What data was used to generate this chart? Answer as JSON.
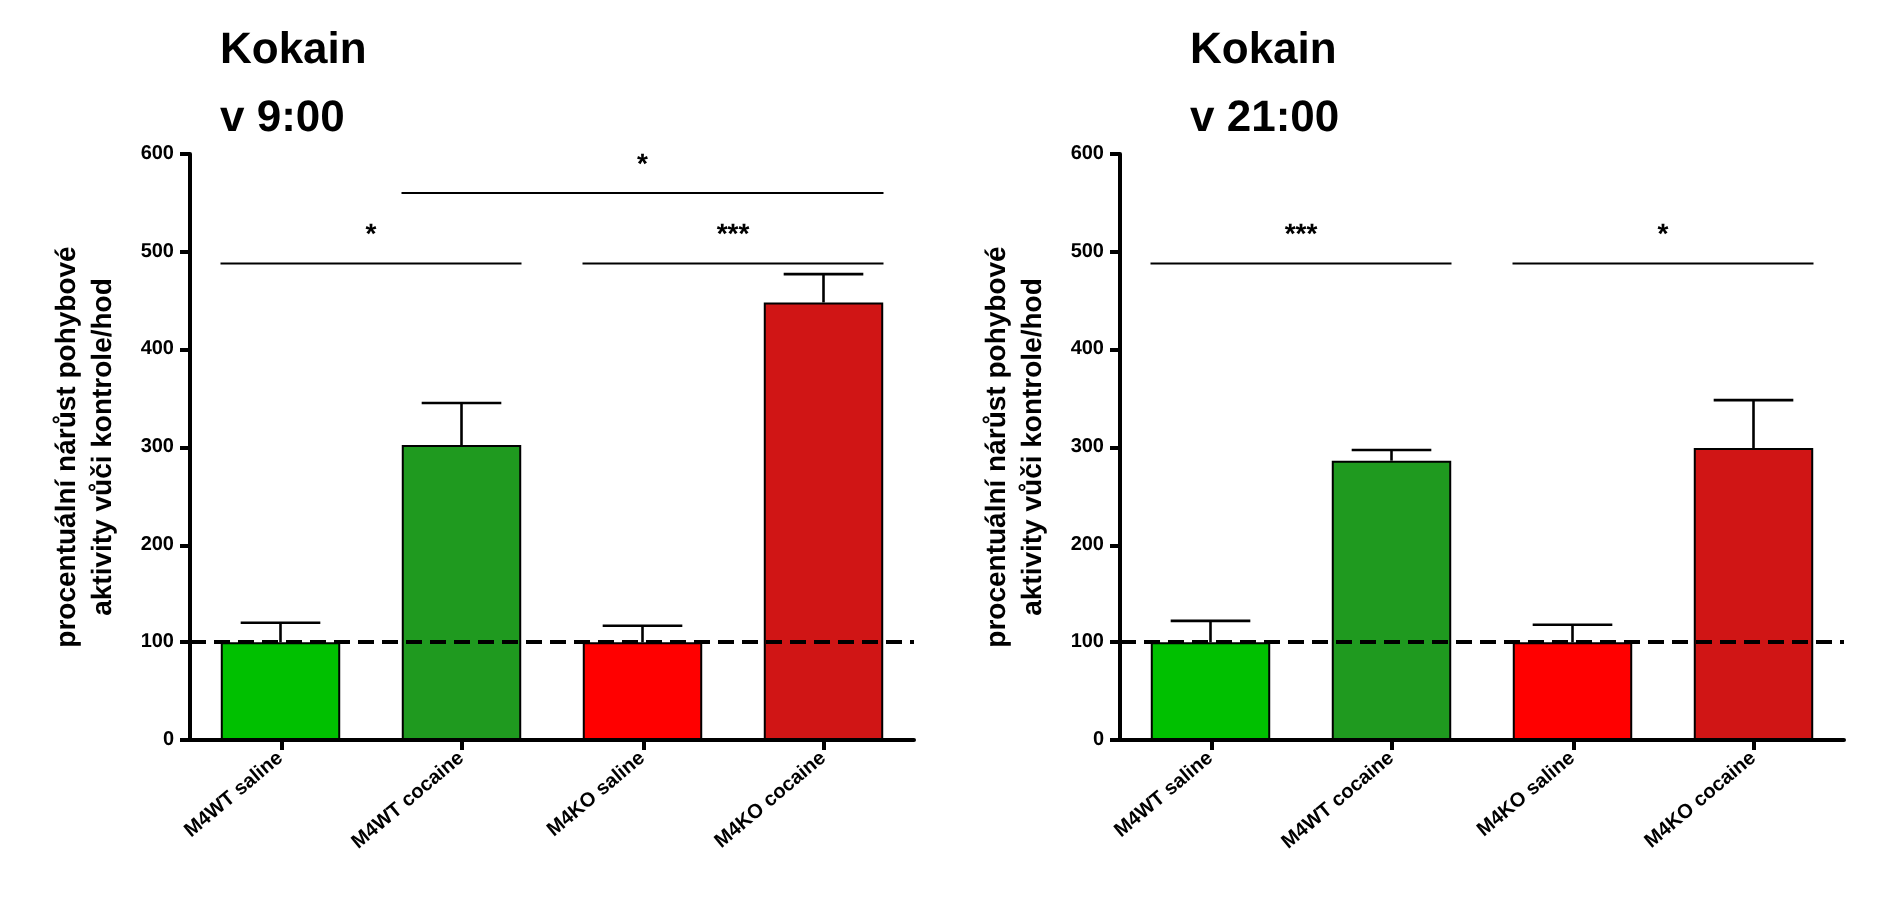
{
  "chart_data": [
    {
      "type": "bar",
      "title": "Kokain\nv 9:00",
      "ylabel": "procentuální nárůst pohybové\naktivity vůči kontrole/hod",
      "categories": [
        "M4WT saline",
        "M4WT cocaine",
        "M4KO saline",
        "M4KO cocaine"
      ],
      "values": [
        100,
        302,
        100,
        448
      ],
      "colors": [
        "#00c000",
        "#1f9a1f",
        "#ff0000",
        "#d01515"
      ],
      "errors": [
        [
          100,
          120
        ],
        [
          302,
          345
        ],
        [
          100,
          117
        ],
        [
          448,
          477
        ]
      ],
      "ylim": [
        0,
        600
      ],
      "yticks": [
        0,
        100,
        200,
        300,
        400,
        500,
        600
      ],
      "ref_lines": [
        {
          "axis": "y",
          "value": 100,
          "line_style": "dashed",
          "color": "#000000"
        }
      ],
      "annotations": [
        "*",
        "*",
        "***"
      ]
    },
    {
      "type": "bar",
      "title": "Kokain\nv 21:00",
      "ylabel": "procentuální nárůst pohybové\naktivity vůči kontrole/hod",
      "categories": [
        "M4WT saline",
        "M4WT cocaine",
        "M4KO saline",
        "M4KO cocaine"
      ],
      "values": [
        100,
        286,
        100,
        299
      ],
      "colors": [
        "#00c000",
        "#1f9a1f",
        "#ff0000",
        "#d01515"
      ],
      "errors": [
        [
          100,
          122
        ],
        [
          286,
          297
        ],
        [
          100,
          118
        ],
        [
          299,
          348
        ]
      ],
      "ylim": [
        0,
        600
      ],
      "yticks": [
        0,
        100,
        200,
        300,
        400,
        500,
        600
      ],
      "ref_lines": [
        {
          "axis": "y",
          "value": 100,
          "line_style": "dashed",
          "color": "#000000"
        }
      ],
      "annotations": [
        "***",
        "*"
      ]
    }
  ]
}
